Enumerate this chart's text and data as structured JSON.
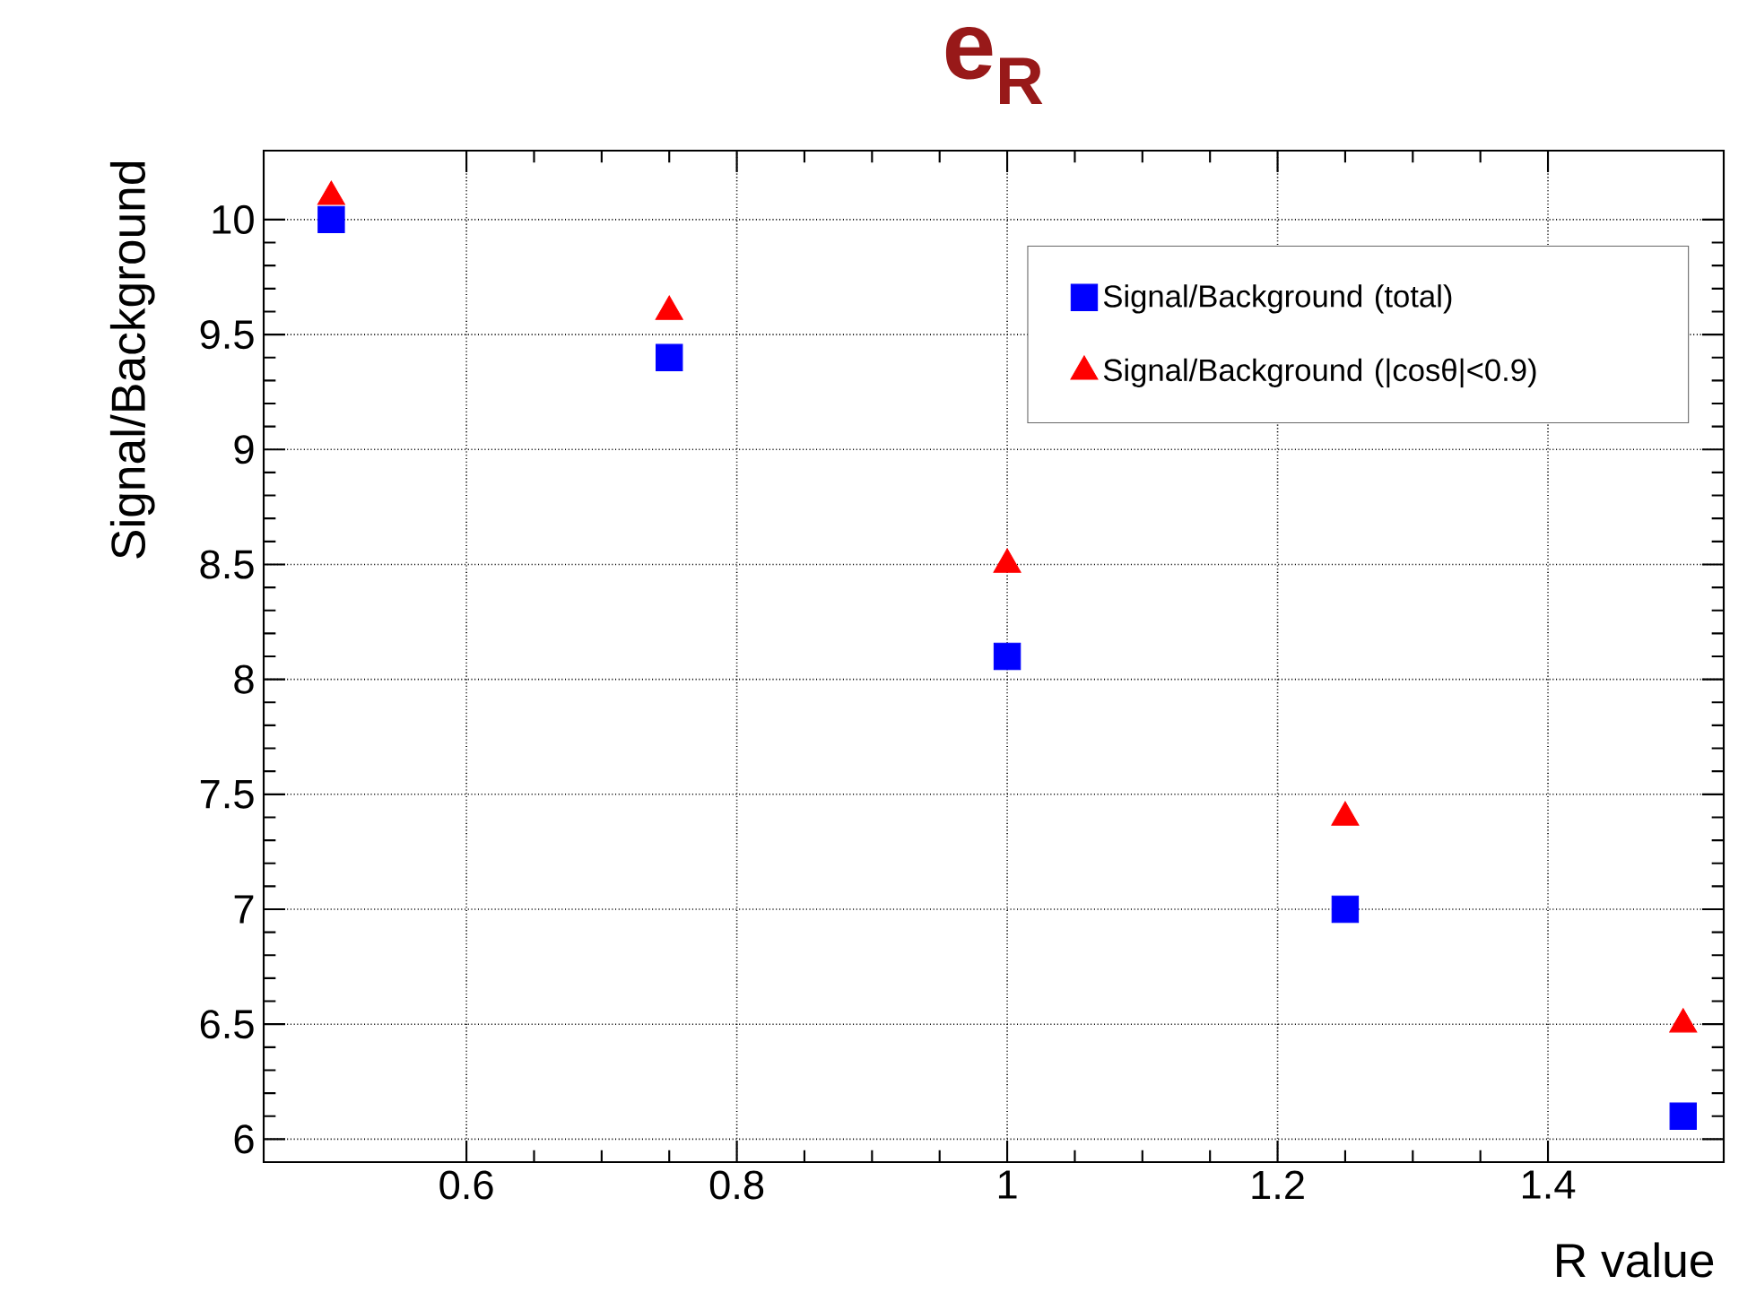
{
  "chart_data": {
    "type": "scatter",
    "title": "e$_{R}$",
    "xlabel": "R value",
    "ylabel": "Signal/Background",
    "x": [
      0.5,
      0.75,
      1.0,
      1.25,
      1.5
    ],
    "series": [
      {
        "name": "Signal/Background (total)",
        "color": "#0000ff",
        "marker": "square",
        "values": [
          10.0,
          9.4,
          8.1,
          7.0,
          6.1
        ]
      },
      {
        "name": "Signal/Background (|cosθ|<0.9)",
        "color": "#ff0000",
        "marker": "triangle",
        "values": [
          10.1,
          9.6,
          8.5,
          7.4,
          6.5
        ]
      }
    ],
    "xlim": [
      0.45,
      1.53
    ],
    "ylim": [
      5.9,
      10.3
    ],
    "xticks": [
      0.6,
      0.8,
      1,
      1.2,
      1.4
    ],
    "yticks": [
      6,
      6.5,
      7,
      7.5,
      8,
      8.5,
      9,
      9.5,
      10
    ],
    "grid": true,
    "legend": "top right"
  }
}
